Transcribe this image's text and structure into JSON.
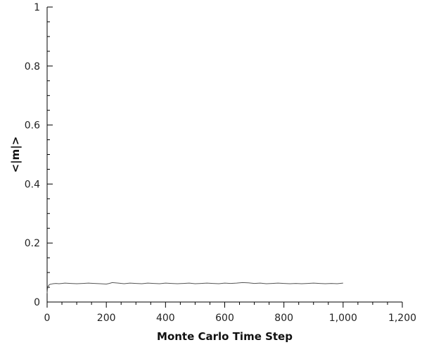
{
  "chart_data": {
    "type": "line",
    "title": "",
    "xlabel": "Monte Carlo Time Step",
    "ylabel": "<|m|>",
    "xlim": [
      0,
      1200
    ],
    "ylim": [
      0,
      1
    ],
    "x_major_ticks": [
      0,
      200,
      400,
      600,
      800,
      1000,
      1200
    ],
    "x_tick_labels": [
      "0",
      "200",
      "400",
      "600",
      "800",
      "1,000",
      "1,200"
    ],
    "y_major_ticks": [
      0,
      0.2,
      0.4,
      0.6,
      0.8,
      1
    ],
    "y_tick_labels": [
      "0",
      "0.2",
      "0.4",
      "0.6",
      "0.8",
      "1"
    ],
    "x_minor_step": 50,
    "y_minor_step": 0.05,
    "grid": false,
    "legend": "none",
    "line_color": "#555555",
    "series": [
      {
        "x": [
          0,
          1,
          2,
          3,
          5,
          7,
          10,
          15,
          20,
          30,
          40,
          50,
          60,
          80,
          100,
          120,
          140,
          160,
          180,
          200,
          210,
          220,
          240,
          260,
          280,
          300,
          320,
          340,
          360,
          380,
          400,
          420,
          440,
          460,
          480,
          500,
          520,
          540,
          560,
          580,
          600,
          620,
          640,
          660,
          680,
          700,
          720,
          740,
          760,
          780,
          800,
          820,
          840,
          860,
          880,
          900,
          920,
          940,
          960,
          980,
          1000
        ],
        "y": [
          0.03,
          0.042,
          0.048,
          0.052,
          0.056,
          0.058,
          0.06,
          0.061,
          0.062,
          0.063,
          0.062,
          0.063,
          0.064,
          0.063,
          0.062,
          0.063,
          0.064,
          0.063,
          0.062,
          0.061,
          0.063,
          0.066,
          0.064,
          0.062,
          0.064,
          0.063,
          0.062,
          0.064,
          0.063,
          0.062,
          0.064,
          0.063,
          0.062,
          0.063,
          0.064,
          0.062,
          0.063,
          0.064,
          0.063,
          0.062,
          0.064,
          0.063,
          0.064,
          0.066,
          0.065,
          0.063,
          0.064,
          0.062,
          0.063,
          0.064,
          0.063,
          0.062,
          0.063,
          0.062,
          0.063,
          0.064,
          0.063,
          0.062,
          0.063,
          0.062,
          0.064
        ]
      }
    ]
  }
}
